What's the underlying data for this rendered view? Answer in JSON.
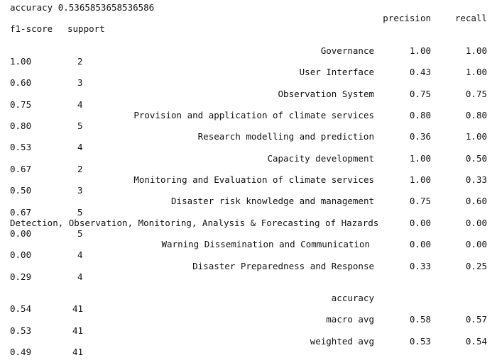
{
  "accuracy_line": "accuracy 0.5365853658536586",
  "headers": {
    "precision": "precision",
    "recall": "recall",
    "f1_score": "f1-score",
    "support": "support"
  },
  "classes": [
    {
      "label": "Governance",
      "precision": "1.00",
      "recall": "1.00",
      "f1": "1.00",
      "support": "2"
    },
    {
      "label": "User Interface",
      "precision": "0.43",
      "recall": "1.00",
      "f1": "0.60",
      "support": "3"
    },
    {
      "label": "Observation System",
      "precision": "0.75",
      "recall": "0.75",
      "f1": "0.75",
      "support": "4"
    },
    {
      "label": "Provision and application of climate services",
      "precision": "0.80",
      "recall": "0.80",
      "f1": "0.80",
      "support": "5"
    },
    {
      "label": "Research modelling and prediction",
      "precision": "0.36",
      "recall": "1.00",
      "f1": "0.53",
      "support": "4"
    },
    {
      "label": "Capacity development",
      "precision": "1.00",
      "recall": "0.50",
      "f1": "0.67",
      "support": "2"
    },
    {
      "label": "Monitoring and Evaluation of climate services",
      "precision": "1.00",
      "recall": "0.33",
      "f1": "0.50",
      "support": "3"
    },
    {
      "label": "Disaster risk knowledge and management",
      "precision": "0.75",
      "recall": "0.60",
      "f1": "0.67",
      "support": "5"
    },
    {
      "label": "Detection, Observation, Monitoring, Analysis & Forecasting of Hazards",
      "precision": "0.00",
      "recall": "0.00",
      "f1": "0.00",
      "support": "5"
    },
    {
      "label": "Warning Dissemination and Communication",
      "precision": "0.00",
      "recall": "0.00",
      "f1": "0.00",
      "support": "4"
    },
    {
      "label": "Disaster Preparedness and Response",
      "precision": "0.33",
      "recall": "0.25",
      "f1": "0.29",
      "support": "4"
    }
  ],
  "summary": [
    {
      "label": "accuracy",
      "precision": "",
      "recall": "",
      "f1": "0.54",
      "support": "41"
    },
    {
      "label": "macro avg",
      "precision": "0.58",
      "recall": "0.57",
      "f1": "0.53",
      "support": "41"
    },
    {
      "label": "weighted avg",
      "precision": "0.53",
      "recall": "0.54",
      "f1": "0.49",
      "support": "41"
    }
  ]
}
